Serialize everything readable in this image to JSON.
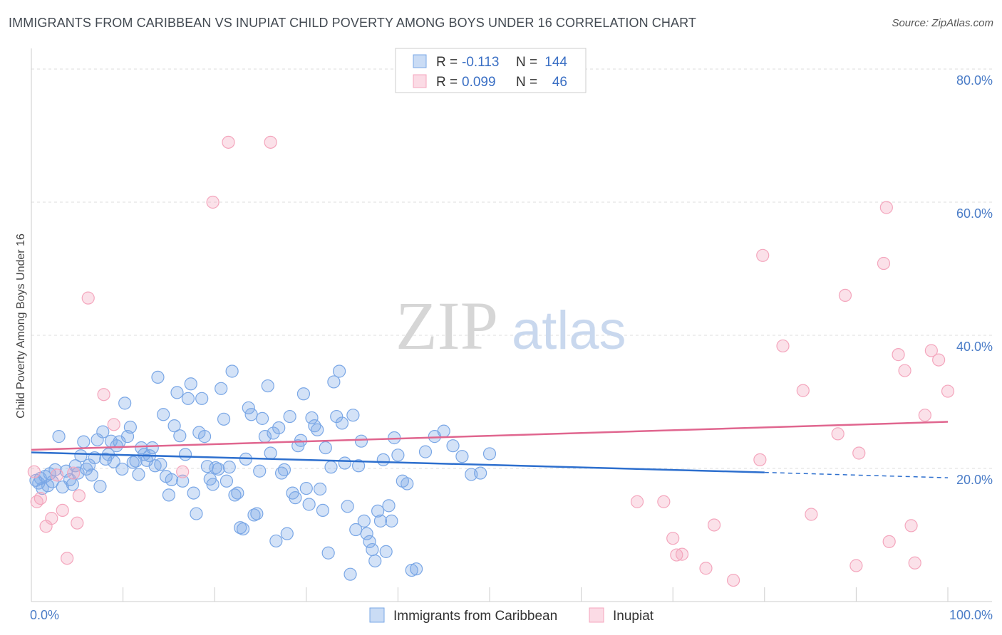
{
  "title": "IMMIGRANTS FROM CARIBBEAN VS INUPIAT CHILD POVERTY AMONG BOYS UNDER 16 CORRELATION CHART",
  "source": "Source: ZipAtlas.com",
  "watermark": {
    "zip": "ZIP",
    "atlas": "atlas"
  },
  "legend": {
    "series": [
      {
        "r_label": "R =",
        "r_value": "-0.113",
        "n_label": "N =",
        "n_value": "144",
        "color": "#7aa7e6"
      },
      {
        "r_label": "R =",
        "r_value": "0.099",
        "n_label": "N =",
        "n_value": "46",
        "color": "#f4a6bd"
      }
    ]
  },
  "chart_data": {
    "type": "scatter",
    "title": "IMMIGRANTS FROM CARIBBEAN VS INUPIAT CHILD POVERTY AMONG BOYS UNDER 16 CORRELATION CHART",
    "xlabel": "",
    "ylabel": "Child Poverty Among Boys Under 16",
    "xlim": [
      0,
      100
    ],
    "ylim": [
      0,
      80
    ],
    "x_tick_labels": [
      "0.0%",
      "100.0%"
    ],
    "y_ticks": [
      20,
      40,
      60,
      80
    ],
    "y_tick_labels": [
      "20.0%",
      "40.0%",
      "60.0%",
      "80.0%"
    ],
    "grid": true,
    "legend_position": "top-center",
    "series": [
      {
        "name": "Immigrants from Caribbean",
        "color": "#7aa7e6",
        "line_color": "#2d6fce",
        "trend": {
          "x0": 0,
          "y0": 22.4,
          "x1": 80,
          "y1": 19.4,
          "dashed_to_x": 100,
          "dashed_to_y": 18.6
        },
        "points": [
          [
            0.5,
            18.2
          ],
          [
            0.8,
            17.8
          ],
          [
            1.0,
            18.5
          ],
          [
            1.2,
            17.0
          ],
          [
            1.5,
            18.8
          ],
          [
            1.8,
            17.4
          ],
          [
            2.0,
            19.2
          ],
          [
            2.3,
            18.0
          ],
          [
            2.6,
            19.8
          ],
          [
            3.0,
            24.8
          ],
          [
            3.4,
            17.2
          ],
          [
            3.8,
            19.6
          ],
          [
            4.2,
            18.3
          ],
          [
            4.5,
            17.6
          ],
          [
            4.8,
            20.4
          ],
          [
            5.1,
            19.3
          ],
          [
            5.4,
            21.9
          ],
          [
            5.7,
            24.0
          ],
          [
            6.0,
            19.9
          ],
          [
            6.3,
            20.5
          ],
          [
            6.6,
            19.0
          ],
          [
            6.9,
            21.6
          ],
          [
            7.2,
            24.3
          ],
          [
            7.5,
            17.3
          ],
          [
            7.8,
            25.5
          ],
          [
            8.1,
            21.4
          ],
          [
            8.4,
            22.1
          ],
          [
            8.7,
            24.1
          ],
          [
            9.0,
            21.0
          ],
          [
            9.3,
            23.4
          ],
          [
            9.6,
            24.0
          ],
          [
            9.9,
            19.9
          ],
          [
            10.2,
            29.8
          ],
          [
            10.5,
            24.8
          ],
          [
            10.8,
            26.2
          ],
          [
            11.1,
            20.9
          ],
          [
            11.4,
            21.1
          ],
          [
            11.7,
            19.1
          ],
          [
            12.0,
            23.1
          ],
          [
            12.3,
            22.1
          ],
          [
            12.6,
            21.2
          ],
          [
            12.9,
            21.9
          ],
          [
            13.2,
            23.1
          ],
          [
            13.5,
            20.4
          ],
          [
            13.8,
            33.7
          ],
          [
            14.1,
            20.6
          ],
          [
            14.4,
            28.1
          ],
          [
            14.7,
            18.8
          ],
          [
            15.0,
            16.0
          ],
          [
            15.3,
            18.3
          ],
          [
            15.6,
            26.4
          ],
          [
            15.9,
            31.4
          ],
          [
            16.2,
            24.9
          ],
          [
            16.5,
            18.1
          ],
          [
            16.8,
            22.1
          ],
          [
            17.1,
            30.5
          ],
          [
            17.4,
            32.7
          ],
          [
            17.7,
            16.3
          ],
          [
            18.0,
            13.2
          ],
          [
            18.3,
            25.4
          ],
          [
            18.6,
            30.5
          ],
          [
            18.9,
            24.8
          ],
          [
            19.2,
            20.3
          ],
          [
            19.5,
            18.4
          ],
          [
            19.8,
            17.6
          ],
          [
            20.1,
            20.1
          ],
          [
            20.4,
            19.9
          ],
          [
            20.7,
            32.0
          ],
          [
            21.0,
            27.4
          ],
          [
            21.3,
            18.1
          ],
          [
            21.6,
            20.2
          ],
          [
            21.9,
            34.6
          ],
          [
            22.2,
            16.0
          ],
          [
            22.5,
            16.3
          ],
          [
            22.8,
            11.1
          ],
          [
            23.1,
            10.9
          ],
          [
            23.4,
            21.4
          ],
          [
            23.7,
            29.1
          ],
          [
            24.0,
            28.1
          ],
          [
            24.3,
            13.0
          ],
          [
            24.6,
            13.2
          ],
          [
            24.9,
            19.6
          ],
          [
            25.2,
            27.5
          ],
          [
            25.5,
            24.8
          ],
          [
            25.8,
            32.4
          ],
          [
            26.1,
            22.3
          ],
          [
            26.4,
            25.3
          ],
          [
            26.7,
            9.1
          ],
          [
            27.0,
            26.1
          ],
          [
            27.3,
            19.3
          ],
          [
            27.6,
            19.8
          ],
          [
            27.9,
            10.2
          ],
          [
            28.2,
            27.8
          ],
          [
            28.5,
            16.3
          ],
          [
            28.8,
            15.6
          ],
          [
            29.1,
            23.4
          ],
          [
            29.4,
            24.2
          ],
          [
            29.7,
            31.2
          ],
          [
            30.0,
            17.0
          ],
          [
            30.3,
            14.6
          ],
          [
            30.6,
            27.6
          ],
          [
            30.9,
            26.4
          ],
          [
            31.2,
            25.8
          ],
          [
            31.5,
            16.9
          ],
          [
            31.8,
            13.7
          ],
          [
            32.1,
            23.1
          ],
          [
            32.4,
            7.3
          ],
          [
            32.7,
            20.2
          ],
          [
            33.0,
            33.0
          ],
          [
            33.3,
            27.8
          ],
          [
            33.6,
            34.6
          ],
          [
            33.9,
            26.8
          ],
          [
            34.2,
            20.8
          ],
          [
            34.5,
            14.3
          ],
          [
            34.8,
            4.1
          ],
          [
            35.1,
            28.0
          ],
          [
            35.4,
            10.8
          ],
          [
            35.7,
            20.4
          ],
          [
            36.0,
            24.1
          ],
          [
            36.3,
            12.1
          ],
          [
            36.6,
            10.2
          ],
          [
            36.9,
            9.0
          ],
          [
            37.2,
            7.8
          ],
          [
            37.5,
            6.1
          ],
          [
            37.8,
            13.6
          ],
          [
            38.1,
            12.1
          ],
          [
            38.4,
            21.3
          ],
          [
            38.7,
            7.5
          ],
          [
            39.0,
            14.4
          ],
          [
            39.3,
            12.1
          ],
          [
            39.6,
            24.6
          ],
          [
            40.0,
            22.0
          ],
          [
            40.5,
            18.1
          ],
          [
            41.0,
            17.7
          ],
          [
            41.5,
            4.7
          ],
          [
            42.0,
            4.9
          ],
          [
            43.0,
            22.5
          ],
          [
            44.0,
            24.8
          ],
          [
            45.0,
            25.6
          ],
          [
            46.0,
            23.4
          ],
          [
            47.0,
            21.8
          ],
          [
            48.0,
            19.1
          ],
          [
            49.0,
            19.3
          ],
          [
            50.0,
            22.2
          ]
        ]
      },
      {
        "name": "Inupiat",
        "color": "#f4a6bd",
        "line_color": "#e0668f",
        "trend": {
          "x0": 0,
          "y0": 22.8,
          "x1": 100,
          "y1": 27.0
        },
        "points": [
          [
            0.3,
            19.5
          ],
          [
            0.6,
            15.0
          ],
          [
            1.0,
            15.5
          ],
          [
            1.6,
            11.3
          ],
          [
            2.2,
            12.5
          ],
          [
            2.8,
            19.0
          ],
          [
            3.4,
            13.7
          ],
          [
            3.9,
            6.5
          ],
          [
            4.6,
            19.3
          ],
          [
            5.0,
            11.8
          ],
          [
            5.2,
            15.9
          ],
          [
            6.2,
            45.6
          ],
          [
            7.9,
            31.1
          ],
          [
            9.0,
            26.6
          ],
          [
            16.5,
            19.5
          ],
          [
            19.8,
            60.0
          ],
          [
            21.5,
            69.0
          ],
          [
            26.1,
            69.0
          ],
          [
            66.1,
            15.0
          ],
          [
            69.0,
            15.0
          ],
          [
            70.0,
            9.5
          ],
          [
            70.4,
            7.0
          ],
          [
            71.0,
            7.1
          ],
          [
            73.6,
            5.0
          ],
          [
            74.5,
            11.5
          ],
          [
            76.6,
            3.2
          ],
          [
            79.5,
            21.3
          ],
          [
            79.8,
            52.0
          ],
          [
            82.0,
            38.4
          ],
          [
            84.2,
            31.7
          ],
          [
            85.1,
            13.1
          ],
          [
            88.0,
            25.2
          ],
          [
            88.8,
            46.0
          ],
          [
            90.0,
            5.4
          ],
          [
            90.3,
            22.3
          ],
          [
            93.0,
            50.8
          ],
          [
            93.3,
            59.2
          ],
          [
            93.6,
            9.0
          ],
          [
            94.6,
            37.1
          ],
          [
            95.3,
            34.7
          ],
          [
            96.0,
            11.4
          ],
          [
            96.4,
            5.8
          ],
          [
            97.5,
            28.0
          ],
          [
            98.2,
            37.7
          ],
          [
            99.0,
            36.3
          ],
          [
            100.0,
            31.6
          ]
        ]
      }
    ]
  },
  "bottom_legend": [
    {
      "label": "Immigrants from Caribbean",
      "color": "#7aa7e6"
    },
    {
      "label": "Inupiat",
      "color": "#f4a6bd"
    }
  ]
}
